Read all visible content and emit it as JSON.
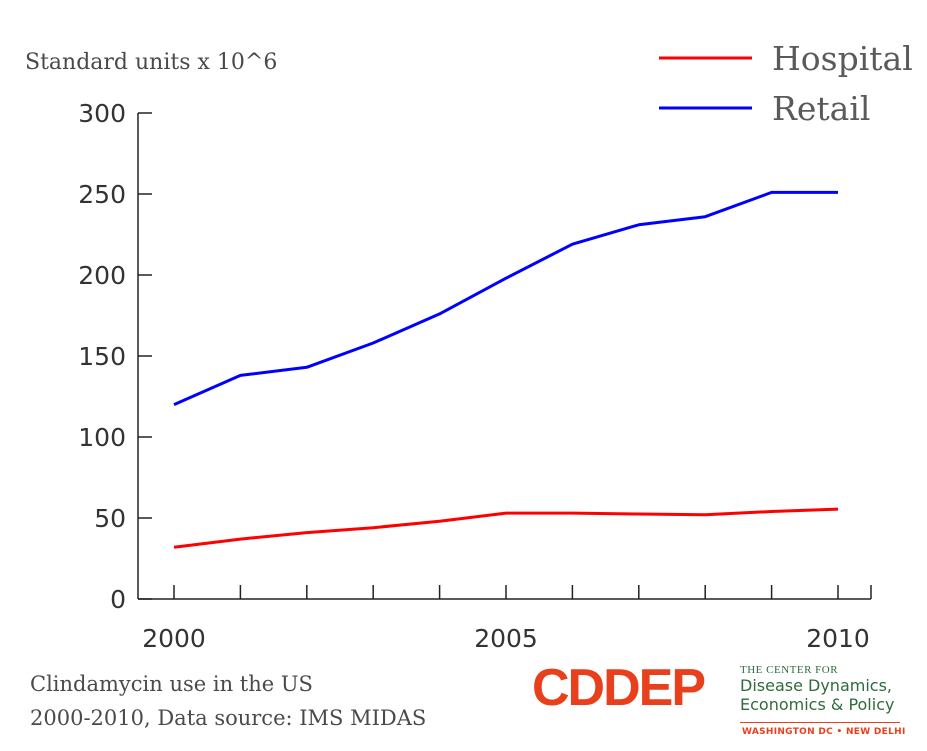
{
  "chart_data": {
    "type": "line",
    "ylabel": "Standard units x 10^6",
    "xlabel": "",
    "x": [
      2000,
      2001,
      2002,
      2003,
      2004,
      2005,
      2006,
      2007,
      2008,
      2009,
      2010
    ],
    "xticks_labeled": [
      "2000",
      "2005",
      "2010"
    ],
    "yticks": [
      "0",
      "50",
      "100",
      "150",
      "200",
      "250",
      "300"
    ],
    "ylim": [
      0,
      300
    ],
    "xlim": [
      1999.5,
      2010.5
    ],
    "series": [
      {
        "name": "Hospital",
        "color": "#ff0000",
        "values": [
          32,
          37,
          41,
          44,
          48,
          53,
          53,
          52.5,
          52,
          54,
          55.5
        ]
      },
      {
        "name": "Retail",
        "color": "#0000ff",
        "values": [
          120,
          138,
          143,
          158,
          176,
          198,
          219,
          231,
          236,
          251,
          251
        ]
      }
    ],
    "legend_position": "top-right",
    "grid": false
  },
  "caption": {
    "line1": "Clindamycin use in the US",
    "line2": "2000-2010, Data source: IMS MIDAS"
  },
  "logo": {
    "mark": "CDDEP",
    "top_line": "THE CENTER FOR",
    "line1": "Disease Dynamics,",
    "line2": "Economics & Policy",
    "bottom_line": "WASHINGTON DC • NEW DELHI",
    "brand_color": "#e8401c",
    "text_color": "#2f6b3a"
  }
}
